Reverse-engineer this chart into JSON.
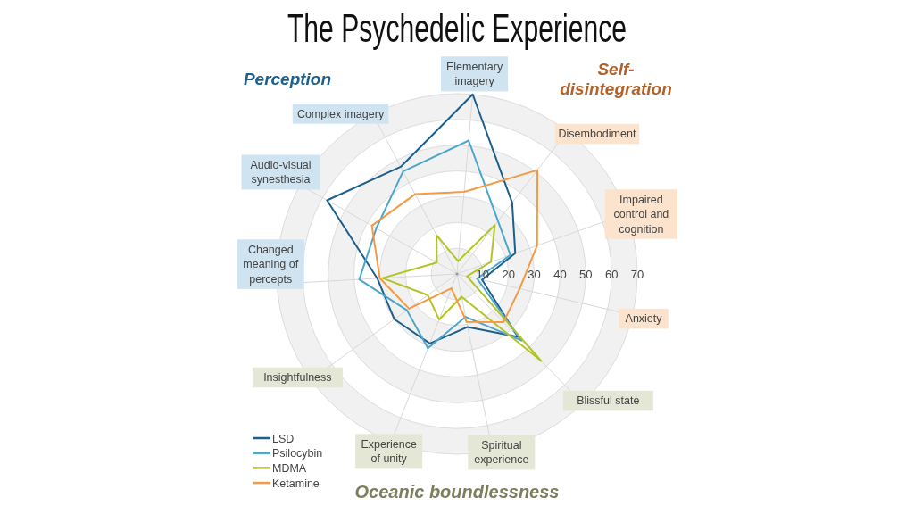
{
  "chart_data": {
    "type": "radar",
    "title": "The Psychedelic Experience",
    "categories": [
      "Elementary imagery",
      "Disembodiment",
      "Impaired control and cognition",
      "Anxiety",
      "Blissful state",
      "Spiritual experience",
      "Experience of unity",
      "Insightfulness",
      "Changed meaning of percepts",
      "Audio-visual synesthesia",
      "Complex imagery"
    ],
    "series": [
      {
        "name": "LSD",
        "color": "#1d5f8c",
        "values": [
          70,
          35,
          24,
          10,
          34,
          21,
          29,
          30,
          31,
          58,
          47
        ]
      },
      {
        "name": "Psilocybin",
        "color": "#4aa6cc",
        "values": [
          52,
          26,
          22,
          8,
          36,
          17,
          31,
          24,
          38,
          36,
          45
        ]
      },
      {
        "name": "MDMA",
        "color": "#b3c324",
        "values": [
          5,
          24,
          14,
          4,
          47,
          9,
          19,
          14,
          29,
          9,
          17
        ]
      },
      {
        "name": "Ketamine",
        "color": "#f39a45",
        "values": [
          32,
          51,
          33,
          25,
          26,
          19,
          6,
          23,
          30,
          38,
          35
        ]
      }
    ],
    "ylim": [
      0,
      70
    ],
    "yticks": [
      10,
      20,
      30,
      40,
      50,
      60,
      70
    ],
    "grid": true,
    "legend": "bottom left",
    "annotations": [
      "Perception",
      "Self-disintegration",
      "Oceanic boundlessness"
    ]
  }
}
